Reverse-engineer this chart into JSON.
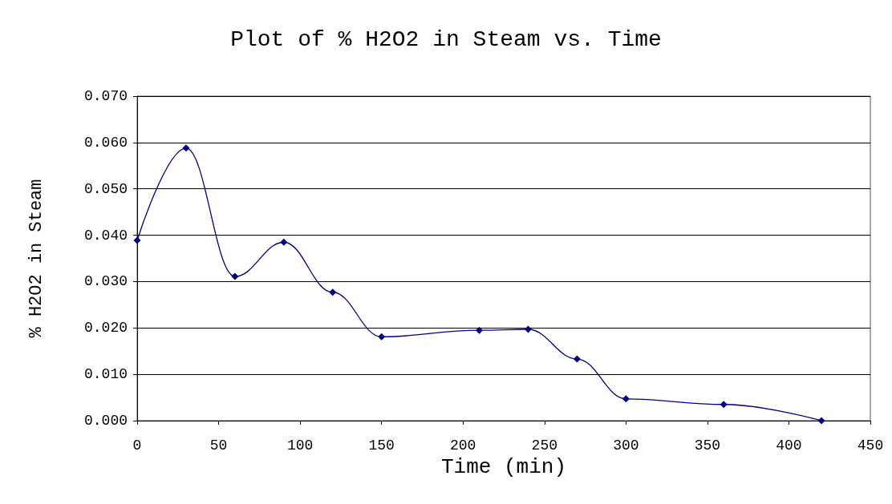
{
  "chart_data": {
    "type": "line",
    "title": "Plot of % H2O2 in Steam vs. Time",
    "xlabel": "Time (min)",
    "ylabel": "% H2O2 in Steam",
    "x": [
      0,
      30,
      60,
      90,
      120,
      150,
      210,
      240,
      270,
      300,
      360,
      420
    ],
    "series": [
      {
        "color": "#000080",
        "values": [
          0.0389,
          0.0588,
          0.0311,
          0.0385,
          0.0277,
          0.0181,
          0.0195,
          0.0197,
          0.0133,
          0.0047,
          0.0035,
          0.0
        ]
      }
    ],
    "xlim": [
      0,
      450
    ],
    "xticks": [
      0,
      50,
      100,
      150,
      200,
      250,
      300,
      350,
      400,
      450
    ],
    "ylim": [
      0,
      0.07
    ],
    "yticks": [
      {
        "value": 0,
        "label": "0.000"
      },
      {
        "value": 0.01,
        "label": "0.010"
      },
      {
        "value": 0.02,
        "label": "0.020"
      },
      {
        "value": 0.03,
        "label": "0.030"
      },
      {
        "value": 0.04,
        "label": "0.040"
      },
      {
        "value": 0.05,
        "label": "0.050"
      },
      {
        "value": 0.06,
        "label": "0.060"
      },
      {
        "value": 0.07,
        "label": "0.070"
      }
    ],
    "grid": "y",
    "marker": "diamond",
    "line_style": "solid"
  }
}
